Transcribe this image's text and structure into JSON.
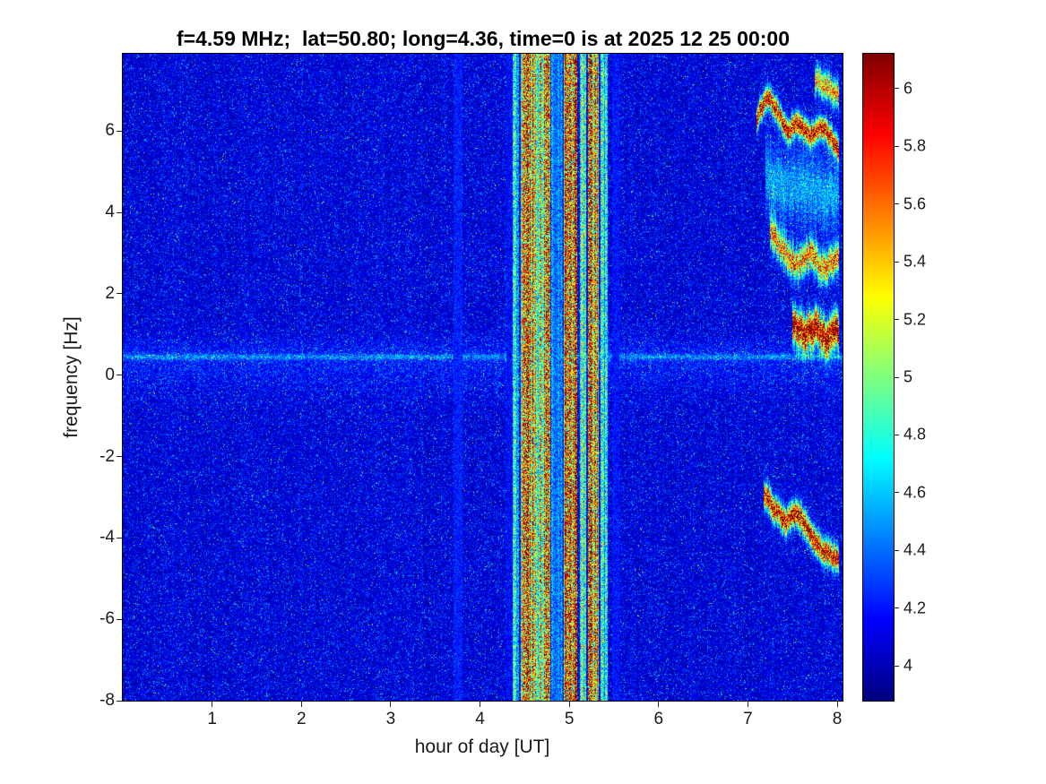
{
  "chart_data": {
    "type": "heatmap",
    "title": "f=4.59 MHz;  lat=50.80; long=4.36, time=0 is at 2025 12 25 00:00",
    "xlabel": "hour of day [UT]",
    "ylabel": "frequency [Hz]",
    "xlim": [
      0,
      8.06
    ],
    "ylim": [
      -8,
      7.9
    ],
    "clim": [
      3.88,
      6.12
    ],
    "colormap": "jet",
    "legend": "none",
    "grid": false,
    "xticks": [
      {
        "v": 1,
        "label": "1"
      },
      {
        "v": 2,
        "label": "2"
      },
      {
        "v": 3,
        "label": "3"
      },
      {
        "v": 4,
        "label": "4"
      },
      {
        "v": 5,
        "label": "5"
      },
      {
        "v": 6,
        "label": "6"
      },
      {
        "v": 7,
        "label": "7"
      },
      {
        "v": 8,
        "label": "8"
      }
    ],
    "yticks": [
      {
        "v": -8,
        "label": "-8"
      },
      {
        "v": -6,
        "label": "-6"
      },
      {
        "v": -4,
        "label": "-4"
      },
      {
        "v": -2,
        "label": "-2"
      },
      {
        "v": 0,
        "label": "0"
      },
      {
        "v": 2,
        "label": "2"
      },
      {
        "v": 4,
        "label": "4"
      },
      {
        "v": 6,
        "label": "6"
      }
    ],
    "colorbar_ticks": [
      {
        "v": 4,
        "label": "4"
      },
      {
        "v": 4.2,
        "label": "4.2"
      },
      {
        "v": 4.4,
        "label": "4.4"
      },
      {
        "v": 4.6,
        "label": "4.6"
      },
      {
        "v": 4.8,
        "label": "4.8"
      },
      {
        "v": 5,
        "label": "5"
      },
      {
        "v": 5.2,
        "label": "5.2"
      },
      {
        "v": 5.4,
        "label": "5.4"
      },
      {
        "v": 5.6,
        "label": "5.6"
      },
      {
        "v": 5.8,
        "label": "5.8"
      },
      {
        "v": 6,
        "label": "6"
      }
    ],
    "background": {
      "base": 3.95,
      "noise": 0.3,
      "speckle_prob": 0.03,
      "speckle_amp": 0.95
    },
    "horizontal_bands": [
      {
        "y": 0.45,
        "sigma": 0.05,
        "amp": 0.3
      },
      {
        "y": 0.5,
        "sigma": 0.3,
        "amp": 0.1
      },
      {
        "y": 0.0,
        "sigma": 0.4,
        "amp": 0.07
      }
    ],
    "vertical_faint_bands": [
      {
        "x0": 3.7,
        "x1": 3.8,
        "amp": 0.15
      },
      {
        "x0": 4.3,
        "x1": 4.36,
        "amp": 0.1
      },
      {
        "x0": 5.48,
        "x1": 5.56,
        "amp": 0.12
      }
    ],
    "interference_bands": [
      {
        "x0": 4.37,
        "x1": 4.44,
        "amp": 0.9
      },
      {
        "x0": 4.46,
        "x1": 4.63,
        "amp": 2.0
      },
      {
        "x0": 4.63,
        "x1": 4.7,
        "amp": 1.3
      },
      {
        "x0": 4.7,
        "x1": 4.79,
        "amp": 1.9
      },
      {
        "x0": 4.8,
        "x1": 4.93,
        "amp": 0.55
      },
      {
        "x0": 4.94,
        "x1": 5.09,
        "amp": 2.1
      },
      {
        "x0": 5.12,
        "x1": 5.19,
        "amp": 1.1
      },
      {
        "x0": 5.21,
        "x1": 5.33,
        "amp": 1.8
      },
      {
        "x0": 5.35,
        "x1": 5.43,
        "amp": 0.85
      }
    ],
    "doppler_traces": [
      {
        "amp": 2.1,
        "sigma": 0.18,
        "points": [
          [
            7.1,
            6.3
          ],
          [
            7.22,
            6.9
          ],
          [
            7.32,
            6.5
          ],
          [
            7.45,
            6.0
          ],
          [
            7.55,
            6.2
          ],
          [
            7.7,
            5.9
          ],
          [
            7.85,
            6.1
          ],
          [
            8.0,
            5.6
          ]
        ]
      },
      {
        "amp": 1.5,
        "sigma": 0.22,
        "points": [
          [
            7.75,
            7.3
          ],
          [
            7.9,
            7.1
          ],
          [
            8.0,
            6.9
          ]
        ]
      },
      {
        "amp": 0.5,
        "sigma": 0.6,
        "points": [
          [
            7.2,
            4.8
          ],
          [
            8.0,
            4.4
          ]
        ]
      },
      {
        "amp": 1.6,
        "sigma": 0.25,
        "points": [
          [
            7.25,
            3.6
          ],
          [
            7.4,
            3.1
          ],
          [
            7.55,
            2.7
          ],
          [
            7.7,
            3.0
          ],
          [
            7.85,
            2.6
          ],
          [
            8.0,
            2.9
          ]
        ]
      },
      {
        "amp": 2.3,
        "sigma": 0.28,
        "points": [
          [
            7.5,
            1.35
          ],
          [
            7.62,
            1.0
          ],
          [
            7.75,
            1.2
          ],
          [
            7.88,
            0.95
          ],
          [
            8.0,
            1.1
          ]
        ]
      },
      {
        "amp": 2.1,
        "sigma": 0.2,
        "points": [
          [
            7.18,
            -2.9
          ],
          [
            7.3,
            -3.3
          ],
          [
            7.42,
            -3.6
          ],
          [
            7.55,
            -3.35
          ],
          [
            7.68,
            -3.8
          ],
          [
            7.82,
            -4.25
          ],
          [
            8.0,
            -4.5
          ]
        ]
      }
    ]
  }
}
